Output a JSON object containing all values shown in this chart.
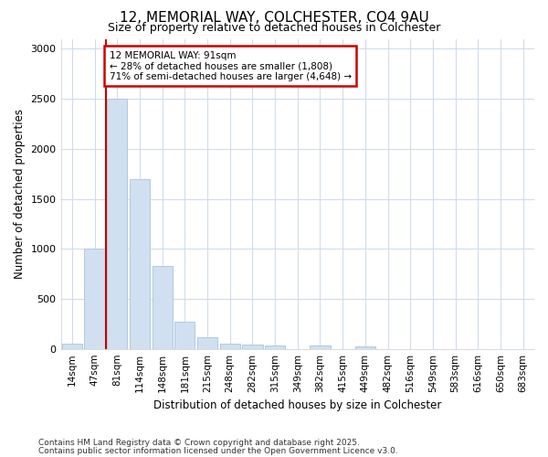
{
  "title_line1": "12, MEMORIAL WAY, COLCHESTER, CO4 9AU",
  "title_line2": "Size of property relative to detached houses in Colchester",
  "xlabel": "Distribution of detached houses by size in Colchester",
  "ylabel": "Number of detached properties",
  "footnote1": "Contains HM Land Registry data © Crown copyright and database right 2025.",
  "footnote2": "Contains public sector information licensed under the Open Government Licence v3.0.",
  "bin_labels": [
    "14sqm",
    "47sqm",
    "81sqm",
    "114sqm",
    "148sqm",
    "181sqm",
    "215sqm",
    "248sqm",
    "282sqm",
    "315sqm",
    "349sqm",
    "382sqm",
    "415sqm",
    "449sqm",
    "482sqm",
    "516sqm",
    "549sqm",
    "583sqm",
    "616sqm",
    "650sqm",
    "683sqm"
  ],
  "bar_values": [
    50,
    1000,
    2500,
    1700,
    830,
    270,
    120,
    50,
    40,
    30,
    0,
    30,
    0,
    20,
    0,
    0,
    0,
    0,
    0,
    0,
    0
  ],
  "bar_color": "#d0e0f0",
  "bar_edge_color": "#b0c8e0",
  "property_line_x": 2,
  "property_line_label": "12 MEMORIAL WAY: 91sqm",
  "annotation_line1": "← 28% of detached houses are smaller (1,808)",
  "annotation_line2": "71% of semi-detached houses are larger (4,648) →",
  "annotation_box_color": "#ffffff",
  "annotation_box_edge": "#cc0000",
  "line_color": "#cc0000",
  "ylim": [
    0,
    3100
  ],
  "yticks": [
    0,
    500,
    1000,
    1500,
    2000,
    2500,
    3000
  ],
  "background_color": "#ffffff",
  "grid_color": "#d0dcec",
  "title_fontsize": 11,
  "subtitle_fontsize": 9
}
